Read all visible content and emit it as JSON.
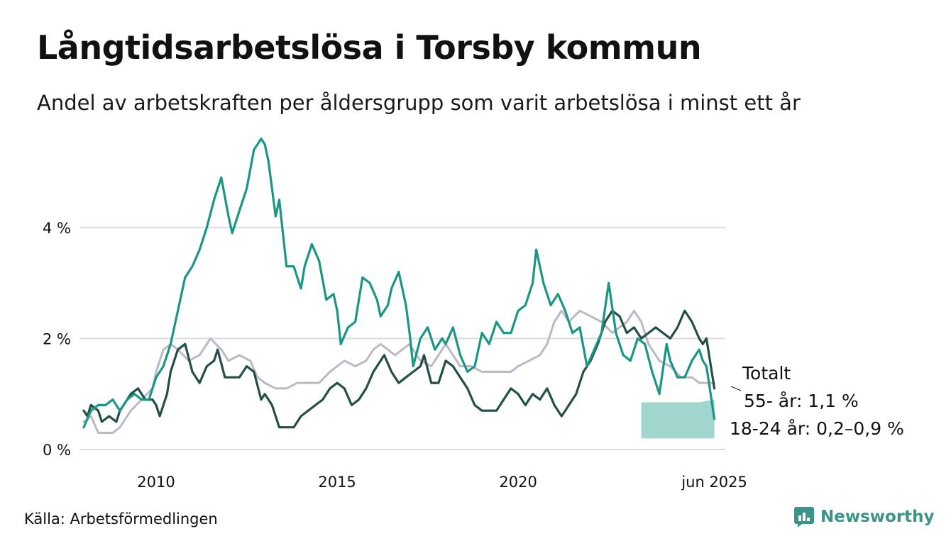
{
  "header": {
    "title": "Långtidsarbetslösa i Torsby kommun",
    "subtitle": "Andel av arbetskraften per åldersgrupp som varit arbetslösa i minst ett år"
  },
  "footer": {
    "source": "Källa: Arbetsförmedlingen",
    "brand": "Newsworthy"
  },
  "colors": {
    "young": "#1a9685",
    "old": "#244f47",
    "total": "#bdb8c8",
    "band": "#8fcfc5",
    "grid": "#dcdcdc"
  },
  "chart_data": {
    "type": "line",
    "title": "Långtidsarbetslösa i Torsby kommun",
    "subtitle": "Andel av arbetskraften per åldersgrupp som varit arbetslösa i minst ett år",
    "xlabel": "",
    "ylabel": "",
    "xlim": [
      2008.0,
      2025.8
    ],
    "ylim": [
      0,
      5.8
    ],
    "grid": true,
    "y_ticks": [
      {
        "value": 0,
        "label": "0 %"
      },
      {
        "value": 2,
        "label": "2 %"
      },
      {
        "value": 4,
        "label": "4 %"
      }
    ],
    "x_ticks": [
      {
        "value": 2010,
        "label": "2010"
      },
      {
        "value": 2015,
        "label": "2015"
      },
      {
        "value": 2020,
        "label": "2020"
      },
      {
        "value": 2025.42,
        "label": "jun 2025"
      }
    ],
    "series": [
      {
        "name": "Totalt",
        "role": "total",
        "end_label": "Totalt",
        "points": [
          [
            2008.0,
            0.5
          ],
          [
            2008.2,
            0.6
          ],
          [
            2008.4,
            0.3
          ],
          [
            2008.8,
            0.3
          ],
          [
            2009.0,
            0.4
          ],
          [
            2009.3,
            0.7
          ],
          [
            2009.6,
            0.9
          ],
          [
            2009.9,
            1.1
          ],
          [
            2010.0,
            1.4
          ],
          [
            2010.2,
            1.8
          ],
          [
            2010.4,
            1.9
          ],
          [
            2010.6,
            1.8
          ],
          [
            2010.9,
            1.6
          ],
          [
            2011.2,
            1.7
          ],
          [
            2011.5,
            2.0
          ],
          [
            2011.8,
            1.8
          ],
          [
            2012.0,
            1.6
          ],
          [
            2012.3,
            1.7
          ],
          [
            2012.6,
            1.6
          ],
          [
            2012.8,
            1.3
          ],
          [
            2013.0,
            1.2
          ],
          [
            2013.3,
            1.1
          ],
          [
            2013.6,
            1.1
          ],
          [
            2013.9,
            1.2
          ],
          [
            2014.2,
            1.2
          ],
          [
            2014.5,
            1.2
          ],
          [
            2014.8,
            1.4
          ],
          [
            2015.0,
            1.5
          ],
          [
            2015.2,
            1.6
          ],
          [
            2015.5,
            1.5
          ],
          [
            2015.8,
            1.6
          ],
          [
            2016.0,
            1.8
          ],
          [
            2016.2,
            1.9
          ],
          [
            2016.4,
            1.8
          ],
          [
            2016.6,
            1.7
          ],
          [
            2016.8,
            1.8
          ],
          [
            2017.0,
            1.9
          ],
          [
            2017.3,
            1.6
          ],
          [
            2017.6,
            1.5
          ],
          [
            2017.8,
            1.7
          ],
          [
            2018.0,
            1.9
          ],
          [
            2018.2,
            1.7
          ],
          [
            2018.4,
            1.5
          ],
          [
            2018.7,
            1.5
          ],
          [
            2019.0,
            1.4
          ],
          [
            2019.3,
            1.4
          ],
          [
            2019.6,
            1.4
          ],
          [
            2019.8,
            1.4
          ],
          [
            2020.0,
            1.5
          ],
          [
            2020.3,
            1.6
          ],
          [
            2020.6,
            1.7
          ],
          [
            2020.8,
            1.9
          ],
          [
            2021.0,
            2.3
          ],
          [
            2021.2,
            2.5
          ],
          [
            2021.4,
            2.3
          ],
          [
            2021.7,
            2.5
          ],
          [
            2022.0,
            2.4
          ],
          [
            2022.3,
            2.3
          ],
          [
            2022.6,
            2.1
          ],
          [
            2022.8,
            2.2
          ],
          [
            2023.0,
            2.3
          ],
          [
            2023.2,
            2.5
          ],
          [
            2023.4,
            2.3
          ],
          [
            2023.6,
            1.9
          ],
          [
            2023.9,
            1.6
          ],
          [
            2024.2,
            1.5
          ],
          [
            2024.5,
            1.3
          ],
          [
            2024.8,
            1.3
          ],
          [
            2025.0,
            1.2
          ],
          [
            2025.2,
            1.2
          ],
          [
            2025.42,
            1.2
          ]
        ]
      },
      {
        "name": "55- år",
        "role": "old",
        "end_label": "55- år: 1,1 %",
        "points": [
          [
            2008.0,
            0.7
          ],
          [
            2008.1,
            0.6
          ],
          [
            2008.2,
            0.8
          ],
          [
            2008.4,
            0.7
          ],
          [
            2008.5,
            0.5
          ],
          [
            2008.7,
            0.6
          ],
          [
            2008.9,
            0.5
          ],
          [
            2009.0,
            0.7
          ],
          [
            2009.2,
            0.9
          ],
          [
            2009.3,
            1.0
          ],
          [
            2009.5,
            1.1
          ],
          [
            2009.7,
            0.9
          ],
          [
            2009.9,
            0.9
          ],
          [
            2010.0,
            0.8
          ],
          [
            2010.1,
            0.6
          ],
          [
            2010.3,
            1.0
          ],
          [
            2010.4,
            1.4
          ],
          [
            2010.6,
            1.8
          ],
          [
            2010.8,
            1.9
          ],
          [
            2011.0,
            1.4
          ],
          [
            2011.2,
            1.2
          ],
          [
            2011.4,
            1.5
          ],
          [
            2011.6,
            1.6
          ],
          [
            2011.7,
            1.8
          ],
          [
            2011.9,
            1.3
          ],
          [
            2012.1,
            1.3
          ],
          [
            2012.3,
            1.3
          ],
          [
            2012.5,
            1.5
          ],
          [
            2012.7,
            1.4
          ],
          [
            2012.9,
            0.9
          ],
          [
            2013.0,
            1.0
          ],
          [
            2013.2,
            0.8
          ],
          [
            2013.4,
            0.4
          ],
          [
            2013.6,
            0.4
          ],
          [
            2013.8,
            0.4
          ],
          [
            2014.0,
            0.6
          ],
          [
            2014.2,
            0.7
          ],
          [
            2014.4,
            0.8
          ],
          [
            2014.6,
            0.9
          ],
          [
            2014.8,
            1.1
          ],
          [
            2015.0,
            1.2
          ],
          [
            2015.2,
            1.1
          ],
          [
            2015.4,
            0.8
          ],
          [
            2015.6,
            0.9
          ],
          [
            2015.8,
            1.1
          ],
          [
            2016.0,
            1.4
          ],
          [
            2016.2,
            1.6
          ],
          [
            2016.3,
            1.7
          ],
          [
            2016.5,
            1.4
          ],
          [
            2016.7,
            1.2
          ],
          [
            2016.9,
            1.3
          ],
          [
            2017.1,
            1.4
          ],
          [
            2017.3,
            1.5
          ],
          [
            2017.4,
            1.7
          ],
          [
            2017.6,
            1.2
          ],
          [
            2017.8,
            1.2
          ],
          [
            2018.0,
            1.6
          ],
          [
            2018.2,
            1.5
          ],
          [
            2018.4,
            1.3
          ],
          [
            2018.6,
            1.1
          ],
          [
            2018.8,
            0.8
          ],
          [
            2019.0,
            0.7
          ],
          [
            2019.2,
            0.7
          ],
          [
            2019.4,
            0.7
          ],
          [
            2019.6,
            0.9
          ],
          [
            2019.8,
            1.1
          ],
          [
            2020.0,
            1.0
          ],
          [
            2020.2,
            0.8
          ],
          [
            2020.4,
            1.0
          ],
          [
            2020.6,
            0.9
          ],
          [
            2020.8,
            1.1
          ],
          [
            2021.0,
            0.8
          ],
          [
            2021.2,
            0.6
          ],
          [
            2021.4,
            0.8
          ],
          [
            2021.6,
            1.0
          ],
          [
            2021.8,
            1.4
          ],
          [
            2022.0,
            1.6
          ],
          [
            2022.2,
            1.9
          ],
          [
            2022.4,
            2.3
          ],
          [
            2022.6,
            2.5
          ],
          [
            2022.8,
            2.4
          ],
          [
            2023.0,
            2.1
          ],
          [
            2023.2,
            2.2
          ],
          [
            2023.4,
            2.0
          ],
          [
            2023.6,
            2.1
          ],
          [
            2023.8,
            2.2
          ],
          [
            2024.0,
            2.1
          ],
          [
            2024.2,
            2.0
          ],
          [
            2024.4,
            2.2
          ],
          [
            2024.6,
            2.5
          ],
          [
            2024.8,
            2.3
          ],
          [
            2025.0,
            2.0
          ],
          [
            2025.1,
            1.9
          ],
          [
            2025.2,
            2.0
          ],
          [
            2025.42,
            1.1
          ]
        ]
      },
      {
        "name": "18-24 år",
        "role": "young",
        "end_label": "18-24 år: 0,2–0,9 %",
        "points": [
          [
            2008.0,
            0.4
          ],
          [
            2008.2,
            0.7
          ],
          [
            2008.4,
            0.8
          ],
          [
            2008.6,
            0.8
          ],
          [
            2008.8,
            0.9
          ],
          [
            2009.0,
            0.7
          ],
          [
            2009.2,
            0.9
          ],
          [
            2009.4,
            1.0
          ],
          [
            2009.6,
            0.9
          ],
          [
            2009.8,
            0.9
          ],
          [
            2010.0,
            1.3
          ],
          [
            2010.2,
            1.5
          ],
          [
            2010.4,
            1.9
          ],
          [
            2010.6,
            2.5
          ],
          [
            2010.8,
            3.1
          ],
          [
            2011.0,
            3.3
          ],
          [
            2011.2,
            3.6
          ],
          [
            2011.4,
            4.0
          ],
          [
            2011.6,
            4.5
          ],
          [
            2011.8,
            4.9
          ],
          [
            2012.0,
            4.2
          ],
          [
            2012.1,
            3.9
          ],
          [
            2012.3,
            4.3
          ],
          [
            2012.5,
            4.7
          ],
          [
            2012.7,
            5.4
          ],
          [
            2012.9,
            5.6
          ],
          [
            2013.0,
            5.5
          ],
          [
            2013.1,
            5.2
          ],
          [
            2013.3,
            4.2
          ],
          [
            2013.4,
            4.5
          ],
          [
            2013.6,
            3.3
          ],
          [
            2013.8,
            3.3
          ],
          [
            2014.0,
            2.9
          ],
          [
            2014.1,
            3.3
          ],
          [
            2014.3,
            3.7
          ],
          [
            2014.5,
            3.4
          ],
          [
            2014.7,
            2.7
          ],
          [
            2014.9,
            2.8
          ],
          [
            2015.0,
            2.5
          ],
          [
            2015.1,
            1.9
          ],
          [
            2015.3,
            2.2
          ],
          [
            2015.5,
            2.3
          ],
          [
            2015.7,
            3.1
          ],
          [
            2015.9,
            3.0
          ],
          [
            2016.1,
            2.7
          ],
          [
            2016.2,
            2.4
          ],
          [
            2016.4,
            2.6
          ],
          [
            2016.5,
            2.9
          ],
          [
            2016.7,
            3.2
          ],
          [
            2016.9,
            2.6
          ],
          [
            2017.0,
            2.1
          ],
          [
            2017.1,
            1.5
          ],
          [
            2017.3,
            2.0
          ],
          [
            2017.5,
            2.2
          ],
          [
            2017.7,
            1.8
          ],
          [
            2017.9,
            2.0
          ],
          [
            2018.0,
            1.9
          ],
          [
            2018.2,
            2.2
          ],
          [
            2018.4,
            1.7
          ],
          [
            2018.6,
            1.4
          ],
          [
            2018.8,
            1.5
          ],
          [
            2019.0,
            2.1
          ],
          [
            2019.2,
            1.9
          ],
          [
            2019.4,
            2.3
          ],
          [
            2019.6,
            2.1
          ],
          [
            2019.8,
            2.1
          ],
          [
            2020.0,
            2.5
          ],
          [
            2020.2,
            2.6
          ],
          [
            2020.4,
            3.0
          ],
          [
            2020.5,
            3.6
          ],
          [
            2020.7,
            3.0
          ],
          [
            2020.9,
            2.6
          ],
          [
            2021.1,
            2.8
          ],
          [
            2021.3,
            2.5
          ],
          [
            2021.5,
            2.1
          ],
          [
            2021.7,
            2.2
          ],
          [
            2021.9,
            1.5
          ],
          [
            2022.1,
            1.8
          ],
          [
            2022.3,
            2.1
          ],
          [
            2022.5,
            3.0
          ],
          [
            2022.7,
            2.1
          ],
          [
            2022.9,
            1.7
          ],
          [
            2023.1,
            1.6
          ],
          [
            2023.3,
            2.0
          ],
          [
            2023.5,
            1.9
          ],
          [
            2023.7,
            1.4
          ],
          [
            2023.9,
            1.0
          ],
          [
            2024.1,
            1.9
          ],
          [
            2024.2,
            1.6
          ],
          [
            2024.4,
            1.3
          ],
          [
            2024.6,
            1.3
          ],
          [
            2024.8,
            1.6
          ],
          [
            2025.0,
            1.8
          ],
          [
            2025.1,
            1.6
          ],
          [
            2025.2,
            1.5
          ],
          [
            2025.42,
            0.55
          ]
        ]
      }
    ],
    "uncertainty_band": {
      "series": "18-24 år",
      "points": [
        [
          2023.4,
          0.2,
          0.85
        ],
        [
          2023.8,
          0.2,
          0.85
        ],
        [
          2024.2,
          0.2,
          0.85
        ],
        [
          2024.6,
          0.2,
          0.85
        ],
        [
          2025.0,
          0.2,
          0.85
        ],
        [
          2025.42,
          0.2,
          0.9
        ]
      ]
    }
  }
}
